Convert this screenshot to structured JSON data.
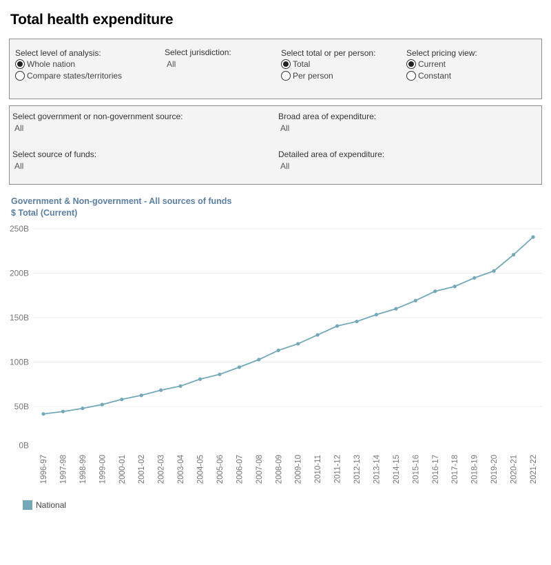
{
  "page": {
    "title": "Total health expenditure"
  },
  "filters": {
    "level": {
      "label": "Select level of analysis:",
      "options": [
        {
          "label": "Whole nation",
          "selected": true
        },
        {
          "label": "Compare states/territories",
          "selected": false
        }
      ]
    },
    "jurisdiction": {
      "label": "Select jurisdiction:",
      "value": "All"
    },
    "total_or_per_person": {
      "label": "Select total or per person:",
      "options": [
        {
          "label": "Total",
          "selected": true
        },
        {
          "label": "Per person",
          "selected": false
        }
      ]
    },
    "pricing": {
      "label": "Select pricing view:",
      "options": [
        {
          "label": "Current",
          "selected": true
        },
        {
          "label": "Constant",
          "selected": false
        }
      ]
    },
    "gov_source": {
      "label": "Select government or non-government source:",
      "value": "All"
    },
    "broad_area": {
      "label": "Broad area of expenditure:",
      "value": "All"
    },
    "source_of_funds": {
      "label": "Select source of funds:",
      "value": "All"
    },
    "detailed_area": {
      "label": "Detailed area of expenditure:",
      "value": "All"
    }
  },
  "colors": {
    "series": "#72a8b8",
    "title": "#5b7fa6",
    "grid": "#eeeeee",
    "tick": "#777777"
  },
  "chart_data": {
    "type": "line",
    "title": "Government & Non-government - All sources of funds",
    "subtitle": "$ Total (Current)",
    "xlabel": "",
    "ylabel": "",
    "ylim": [
      0,
      250
    ],
    "yticks": [
      0,
      50,
      100,
      150,
      200,
      250
    ],
    "ytick_labels": [
      "0B",
      "50B",
      "100B",
      "150B",
      "200B",
      "250B"
    ],
    "grid": true,
    "legend": {
      "placement": "bottom-left",
      "entries": [
        "National"
      ]
    },
    "categories": [
      "1996-97",
      "1997-98",
      "1998-99",
      "1999-00",
      "2000-01",
      "2001-02",
      "2002-03",
      "2003-04",
      "2004-05",
      "2005-06",
      "2006-07",
      "2007-08",
      "2008-09",
      "2009-10",
      "2010-11",
      "2011-12",
      "2012-13",
      "2013-14",
      "2014-15",
      "2015-16",
      "2016-17",
      "2017-18",
      "2018-19",
      "2019-20",
      "2020-21",
      "2021-22"
    ],
    "series": [
      {
        "name": "National",
        "unit": "B",
        "values": [
          41.7,
          44.4,
          47.9,
          52.2,
          58.0,
          62.6,
          68.4,
          73.0,
          80.8,
          86.2,
          94.3,
          102.8,
          113.2,
          120.6,
          130.6,
          140.6,
          145.7,
          153.4,
          160.0,
          169.2,
          179.7,
          185.1,
          194.7,
          202.5,
          220.8,
          240.7
        ]
      }
    ]
  }
}
